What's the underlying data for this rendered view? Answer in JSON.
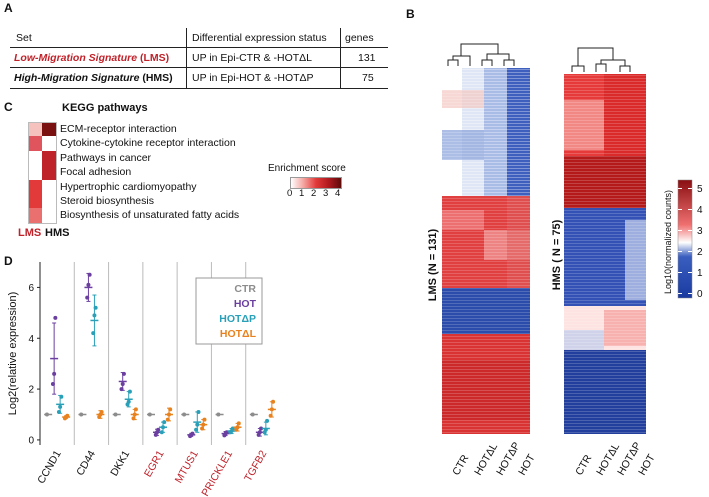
{
  "panel_a": {
    "letter": "A",
    "header": [
      "Set",
      "Differential expression status",
      "genes"
    ],
    "rows": [
      {
        "name_italic": "Low-Migration Signature",
        "abbr": "(LMS)",
        "status": "UP in Epi-CTR & -HOTΔL",
        "genes": "131",
        "color": "#c0222a"
      },
      {
        "name_italic": "High-Migration Signature",
        "abbr": "(HMS)",
        "status": "UP in Epi-HOT & -HOTΔP",
        "genes": "75",
        "color": "#111111"
      }
    ]
  },
  "panel_c": {
    "letter": "C",
    "title": "KEGG pathways",
    "pathways": [
      "ECM-receptor interaction",
      "Cytokine-cytokine receptor interaction",
      "Pathways in cancer",
      "Focal adhesion",
      "Hypertrophic cardiomyopathy",
      "Steroid biosynthesis",
      "Biosynthesis of unsaturated fatty acids"
    ],
    "lms_colors": [
      "#f6c2bd",
      "#e0555d",
      "#ffffff",
      "#ffffff",
      "#e23a3a",
      "#e23a3a",
      "#ea7070"
    ],
    "hms_colors": [
      "#7a1010",
      "#ffffff",
      "#c0222a",
      "#c0222a",
      "#ffffff",
      "#ffffff",
      "#ffffff"
    ],
    "col_labels": {
      "lms": "LMS",
      "hms": "HMS"
    },
    "col_colors": {
      "lms": "#c0222a",
      "hms": "#111111"
    },
    "legend_title": "Enrichment score",
    "legend_ticks": [
      "0",
      "1",
      "2",
      "3",
      "4"
    ]
  },
  "panel_b": {
    "letter": "B",
    "lms_label": "LMS (N = 131)",
    "hms_label": "HMS ( N = 75)",
    "x_labels": [
      "CTR",
      "HOTΔL",
      "HOTΔP",
      "HOT"
    ],
    "colorbar_title": "Log10(normalized counts)",
    "colorbar_ticks": [
      "5",
      "4",
      "3",
      "2",
      "1",
      "0"
    ]
  },
  "chart_data": {
    "type": "scatter",
    "panel_letter": "D",
    "ylabel": "Log2(relative expression)",
    "ylim": [
      -0.2,
      7
    ],
    "yticks": [
      "0",
      "2",
      "4",
      "6"
    ],
    "categories": [
      "CCND1",
      "CD44",
      "DKK1",
      "EGR1",
      "MTUS1",
      "PRICKLE1",
      "TGFB2"
    ],
    "category_colors": [
      "#111111",
      "#111111",
      "#111111",
      "#c0222a",
      "#c0222a",
      "#c0222a",
      "#c0222a"
    ],
    "legend": [
      "CTR",
      "HOT",
      "HOTΔP",
      "HOTΔL"
    ],
    "series": [
      {
        "name": "CTR",
        "color": "#8c8c8c",
        "means": [
          1.0,
          1.0,
          1.0,
          1.0,
          1.0,
          1.0,
          1.0
        ],
        "sd": [
          0,
          0,
          0,
          0,
          0,
          0,
          0
        ],
        "points": [
          [
            1.0
          ],
          [
            1.0
          ],
          [
            1.0
          ],
          [
            1.0
          ],
          [
            1.0
          ],
          [
            1.0
          ],
          [
            1.0
          ]
        ]
      },
      {
        "name": "HOT",
        "color": "#6b3fa0",
        "means": [
          3.2,
          6.0,
          2.3,
          0.3,
          0.2,
          0.25,
          0.3
        ],
        "sd": [
          1.4,
          0.55,
          0.35,
          0.12,
          0.06,
          0.08,
          0.15
        ],
        "points": [
          [
            2.2,
            2.6,
            4.8
          ],
          [
            5.6,
            6.1,
            6.5
          ],
          [
            2.0,
            2.2,
            2.6
          ],
          [
            0.2,
            0.3,
            0.4
          ],
          [
            0.15,
            0.2,
            0.25
          ],
          [
            0.18,
            0.25,
            0.3
          ],
          [
            0.2,
            0.3,
            0.45
          ]
        ]
      },
      {
        "name": "HOTΔP",
        "color": "#2aa0b8",
        "means": [
          1.4,
          4.7,
          1.6,
          0.5,
          0.7,
          0.35,
          0.45
        ],
        "sd": [
          0.35,
          1.0,
          0.3,
          0.2,
          0.4,
          0.1,
          0.25
        ],
        "points": [
          [
            1.1,
            1.3,
            1.7
          ],
          [
            4.2,
            4.9,
            5.2
          ],
          [
            1.4,
            1.5,
            1.9
          ],
          [
            0.3,
            0.5,
            0.7
          ],
          [
            0.4,
            0.6,
            1.1
          ],
          [
            0.3,
            0.35,
            0.45
          ],
          [
            0.3,
            0.4,
            0.75
          ]
        ]
      },
      {
        "name": "HOTΔL",
        "color": "#e8821e",
        "means": [
          0.9,
          1.0,
          1.0,
          1.0,
          0.6,
          0.5,
          1.2
        ],
        "sd": [
          0.05,
          0.15,
          0.2,
          0.25,
          0.2,
          0.15,
          0.3
        ],
        "points": [
          [
            0.85,
            0.9,
            0.95
          ],
          [
            0.9,
            1.0,
            1.1
          ],
          [
            0.85,
            1.0,
            1.2
          ],
          [
            0.8,
            1.0,
            1.2
          ],
          [
            0.45,
            0.6,
            0.8
          ],
          [
            0.4,
            0.5,
            0.65
          ],
          [
            0.95,
            1.2,
            1.5
          ]
        ]
      }
    ]
  }
}
